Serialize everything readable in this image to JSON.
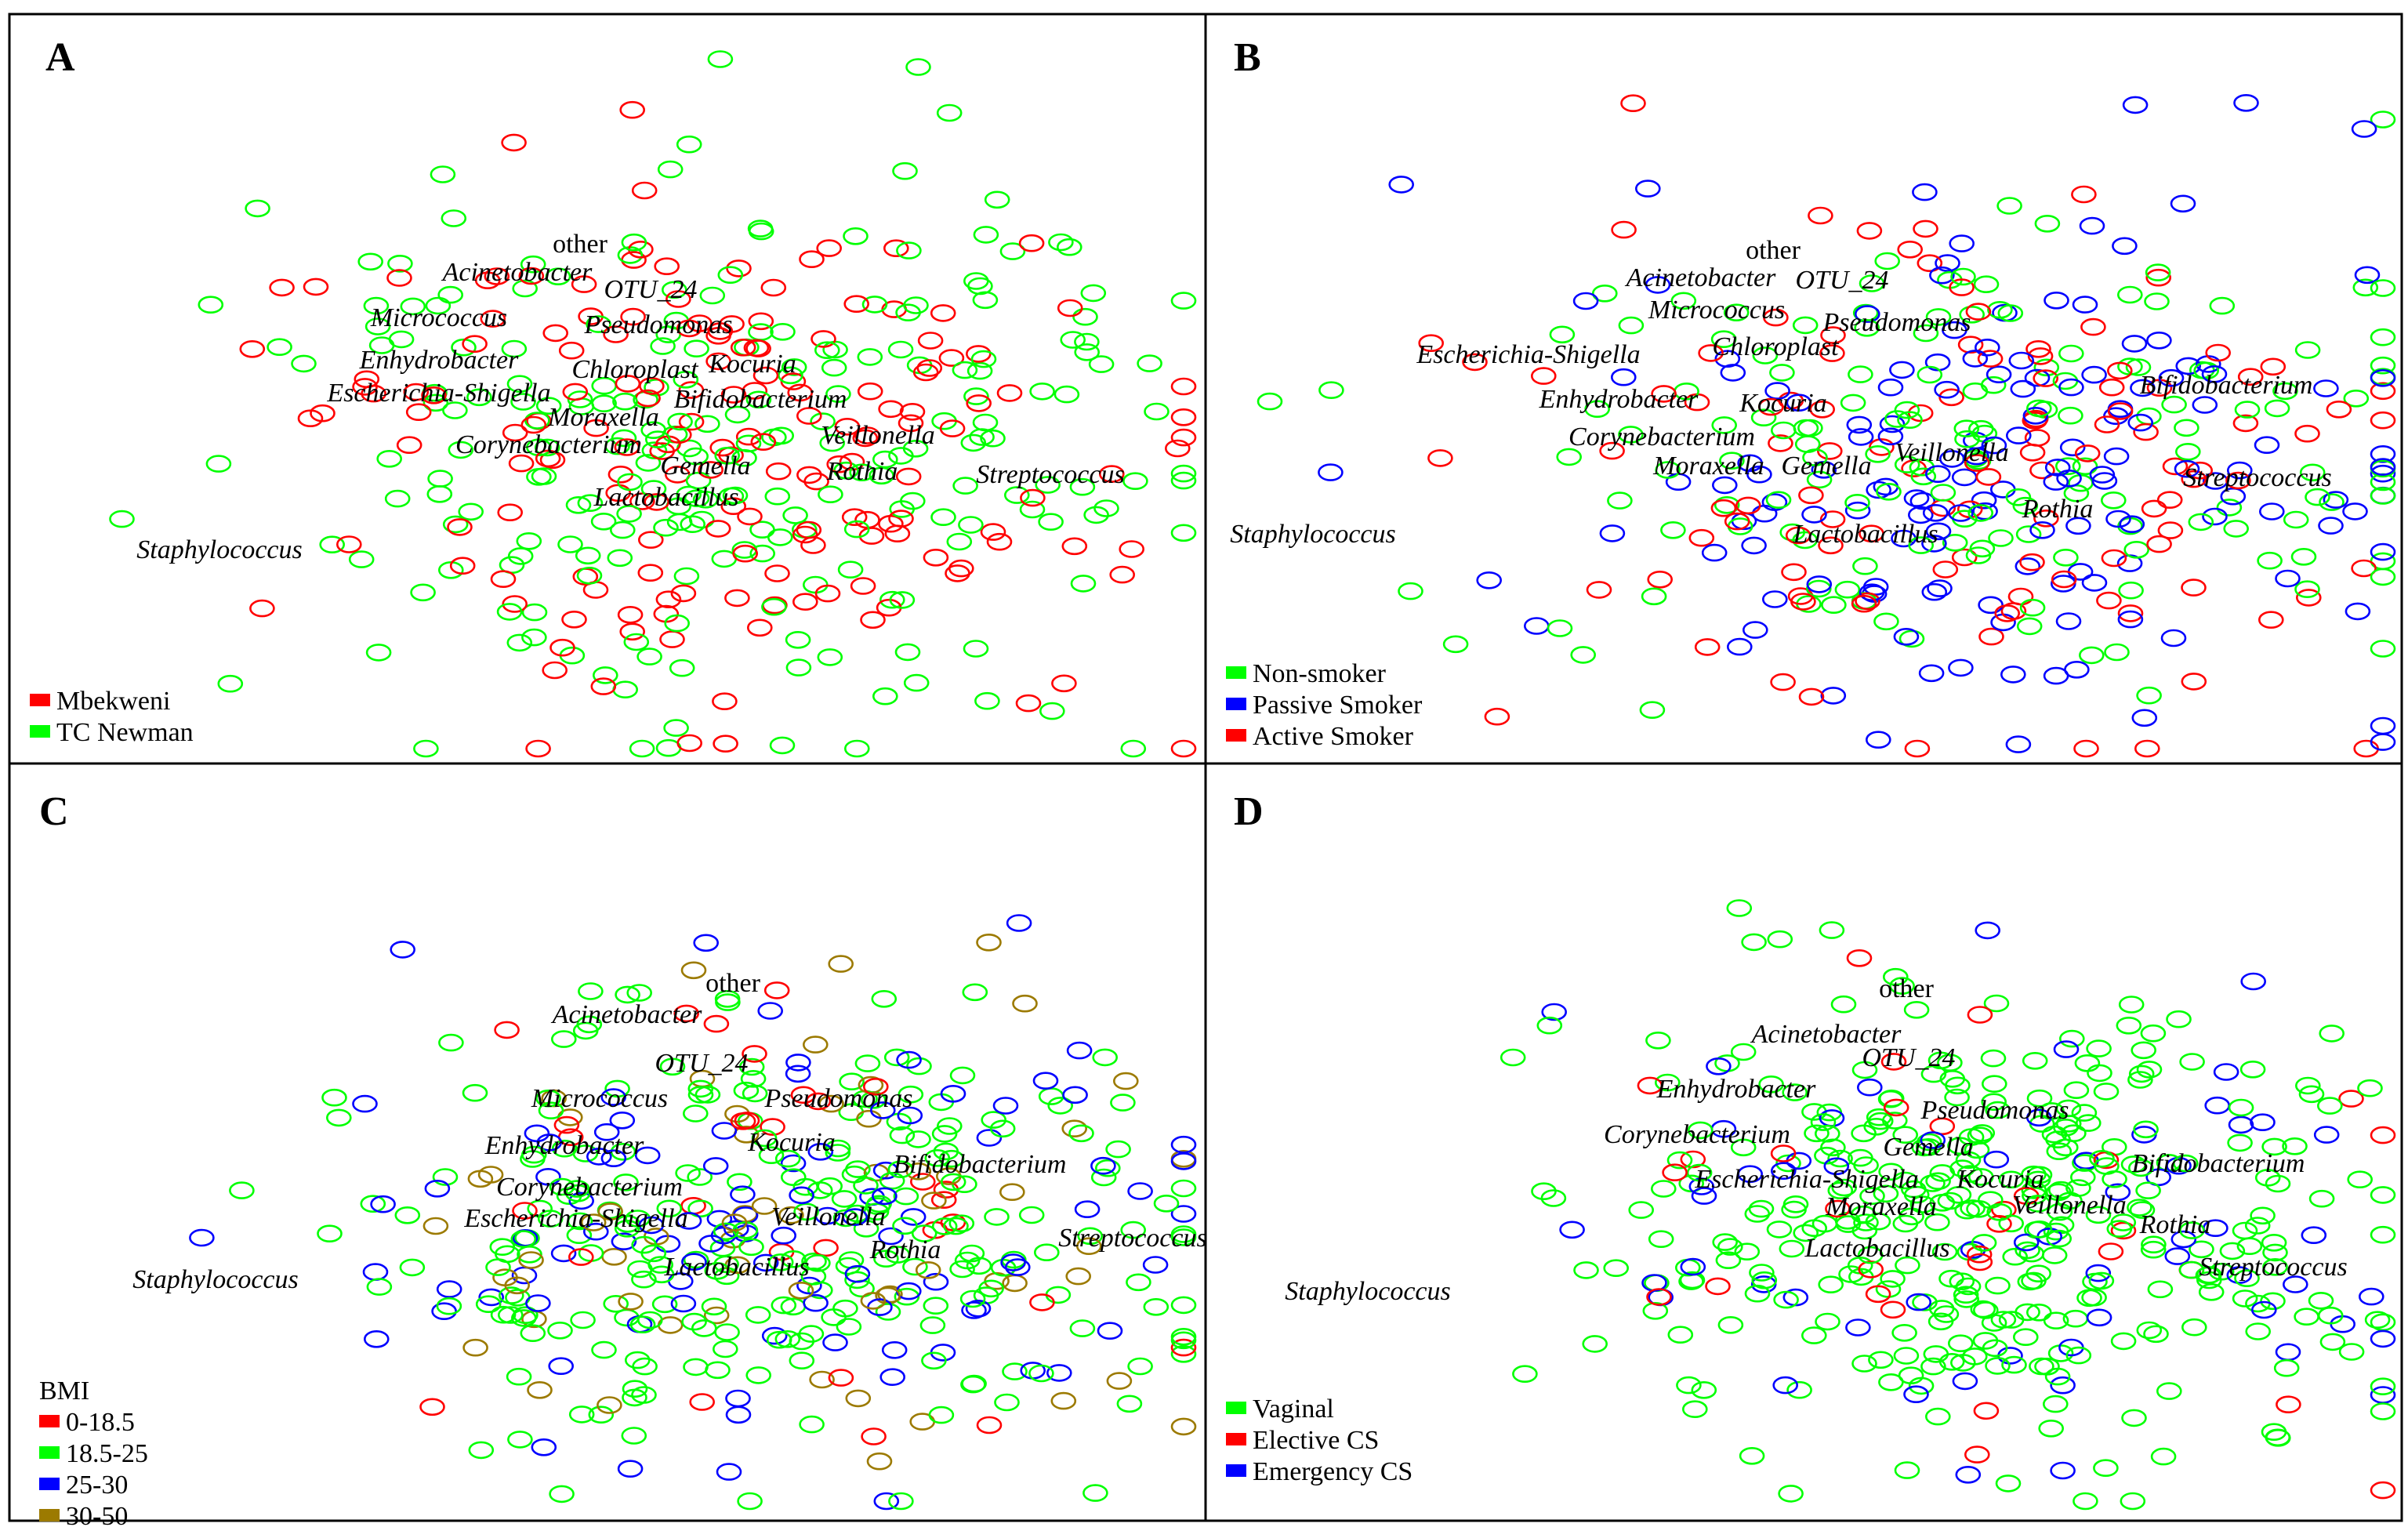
{
  "chart_data": [
    {
      "type": "scatter",
      "panel": "A",
      "title": "A",
      "colors": {
        "Mbekweni": "#ff0000",
        "TC Newman": "#00ff00"
      },
      "legend": [
        "Mbekweni",
        "TC Newman"
      ],
      "legend_title": "",
      "legend_position": "bottom-left",
      "labels": [
        {
          "text": "other",
          "italic": false
        },
        {
          "text": "Acinetobacter",
          "italic": true
        },
        {
          "text": "OTU_24",
          "italic": true
        },
        {
          "text": "Micrococcus",
          "italic": true
        },
        {
          "text": "Pseudomonas",
          "italic": true
        },
        {
          "text": "Enhydrobacter",
          "italic": true
        },
        {
          "text": "Chloroplast",
          "italic": true
        },
        {
          "text": "Kocuria",
          "italic": true
        },
        {
          "text": "Escherichia-Shigella",
          "italic": true
        },
        {
          "text": "Bifidobacterium",
          "italic": true
        },
        {
          "text": "Moraxella",
          "italic": true
        },
        {
          "text": "Veillonella",
          "italic": true
        },
        {
          "text": "Corynebacterium",
          "italic": true
        },
        {
          "text": "Gemella",
          "italic": true
        },
        {
          "text": "Rothia",
          "italic": true
        },
        {
          "text": "Streptococcus",
          "italic": true
        },
        {
          "text": "Lactobacillus",
          "italic": true
        },
        {
          "text": "Staphylococcus",
          "italic": true
        }
      ],
      "groups_count": [
        170,
        230
      ]
    },
    {
      "type": "scatter",
      "panel": "B",
      "title": "B",
      "colors": {
        "Non-smoker": "#00ff00",
        "Passive Smoker": "#0000ff",
        "Active Smoker": "#ff0000"
      },
      "legend": [
        "Non-smoker",
        "Passive Smoker",
        "Active Smoker"
      ],
      "legend_title": "",
      "legend_position": "bottom-left",
      "labels": [
        {
          "text": "other",
          "italic": false
        },
        {
          "text": "Acinetobacter",
          "italic": true
        },
        {
          "text": "OTU_24",
          "italic": true
        },
        {
          "text": "Micrococcus",
          "italic": true
        },
        {
          "text": "Pseudomonas",
          "italic": true
        },
        {
          "text": "Escherichia-Shigella",
          "italic": true
        },
        {
          "text": "Chloroplast",
          "italic": true
        },
        {
          "text": "Bifidobacterium",
          "italic": true
        },
        {
          "text": "Enhydrobacter",
          "italic": true
        },
        {
          "text": "Kocuria",
          "italic": true
        },
        {
          "text": "Corynebacterium",
          "italic": true
        },
        {
          "text": "Veillonella",
          "italic": true
        },
        {
          "text": "Moraxella",
          "italic": true
        },
        {
          "text": "Gemella",
          "italic": true
        },
        {
          "text": "Streptococcus",
          "italic": true
        },
        {
          "text": "Rothia",
          "italic": true
        },
        {
          "text": "Staphylococcus",
          "italic": true
        },
        {
          "text": "Lactobacillus",
          "italic": true
        }
      ],
      "groups_count": [
        150,
        150,
        110
      ]
    },
    {
      "type": "scatter",
      "panel": "C",
      "title": "C",
      "colors": {
        "0-18.5": "#ff0000",
        "18.5-25": "#00ff00",
        "25-30": "#0000ff",
        "30-50": "#9c7a00"
      },
      "legend": [
        "0-18.5",
        "18.5-25",
        "25-30",
        "30-50"
      ],
      "legend_title": "BMI",
      "legend_position": "bottom-left",
      "labels": [
        {
          "text": "other",
          "italic": false
        },
        {
          "text": "Acinetobacter",
          "italic": true
        },
        {
          "text": "OTU_24",
          "italic": true
        },
        {
          "text": "Micrococcus",
          "italic": true
        },
        {
          "text": "Pseudomonas",
          "italic": true
        },
        {
          "text": "Enhydrobacter",
          "italic": true
        },
        {
          "text": "Kocuria",
          "italic": true
        },
        {
          "text": "Bifidobacterium",
          "italic": true
        },
        {
          "text": "Corynebacterium",
          "italic": true
        },
        {
          "text": "Escherichia-Shigella",
          "italic": true
        },
        {
          "text": "Veillonella",
          "italic": true
        },
        {
          "text": "Streptococcus",
          "italic": true
        },
        {
          "text": "Rothia",
          "italic": true
        },
        {
          "text": "Staphylococcus",
          "italic": true
        },
        {
          "text": "Lactobacillus",
          "italic": true
        }
      ],
      "groups_count": [
        30,
        240,
        100,
        60
      ]
    },
    {
      "type": "scatter",
      "panel": "D",
      "title": "D",
      "colors": {
        "Vaginal": "#00ff00",
        "Elective CS": "#ff0000",
        "Emergency CS": "#0000ff"
      },
      "legend": [
        "Vaginal",
        "Elective CS",
        "Emergency CS"
      ],
      "legend_title": "",
      "legend_position": "bottom-left",
      "labels": [
        {
          "text": "other",
          "italic": false
        },
        {
          "text": "Acinetobacter",
          "italic": true
        },
        {
          "text": "OTU_24",
          "italic": true
        },
        {
          "text": "Enhydrobacter",
          "italic": true
        },
        {
          "text": "Pseudomonas",
          "italic": true
        },
        {
          "text": "Corynebacterium",
          "italic": true
        },
        {
          "text": "Gemella",
          "italic": true
        },
        {
          "text": "Bifidobacterium",
          "italic": true
        },
        {
          "text": "Escherichia-Shigella",
          "italic": true
        },
        {
          "text": "Kocuria",
          "italic": true
        },
        {
          "text": "Moraxella",
          "italic": true
        },
        {
          "text": "Veillonella",
          "italic": true
        },
        {
          "text": "Rothia",
          "italic": true
        },
        {
          "text": "Lactobacillus",
          "italic": true
        },
        {
          "text": "Streptococcus",
          "italic": true
        },
        {
          "text": "Staphylococcus",
          "italic": true
        }
      ],
      "groups_count": [
        330,
        30,
        60
      ]
    }
  ]
}
